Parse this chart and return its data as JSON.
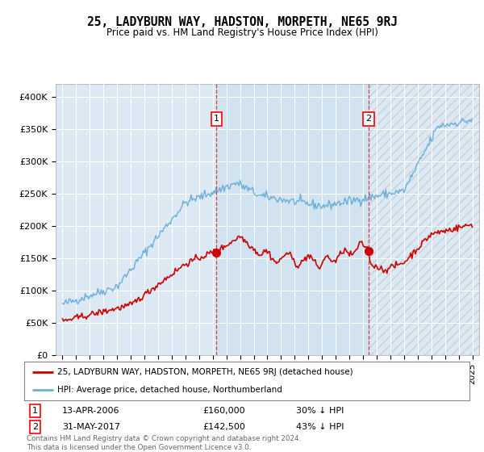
{
  "title": "25, LADYBURN WAY, HADSTON, MORPETH, NE65 9RJ",
  "subtitle": "Price paid vs. HM Land Registry's House Price Index (HPI)",
  "bg_color": "#dce9f5",
  "hpi_color": "#6baed6",
  "price_color": "#cc0000",
  "marker1_x": 2006.28,
  "marker2_x": 2017.42,
  "marker1_price": 160000,
  "marker2_price": 142500,
  "legend_line1": "25, LADYBURN WAY, HADSTON, MORPETH, NE65 9RJ (detached house)",
  "legend_line2": "HPI: Average price, detached house, Northumberland",
  "footer": "Contains HM Land Registry data © Crown copyright and database right 2024.\nThis data is licensed under the Open Government Licence v3.0.",
  "ylim": [
    0,
    420000
  ],
  "yticks": [
    0,
    50000,
    100000,
    150000,
    200000,
    250000,
    300000,
    350000,
    400000
  ],
  "ytick_labels": [
    "£0",
    "£50K",
    "£100K",
    "£150K",
    "£200K",
    "£250K",
    "£300K",
    "£350K",
    "£400K"
  ],
  "xlim": [
    1994.5,
    2025.5
  ],
  "xticks": [
    1995,
    1996,
    1997,
    1998,
    1999,
    2000,
    2001,
    2002,
    2003,
    2004,
    2005,
    2006,
    2007,
    2008,
    2009,
    2010,
    2011,
    2012,
    2013,
    2014,
    2015,
    2016,
    2017,
    2018,
    2019,
    2020,
    2021,
    2022,
    2023,
    2024,
    2025
  ]
}
